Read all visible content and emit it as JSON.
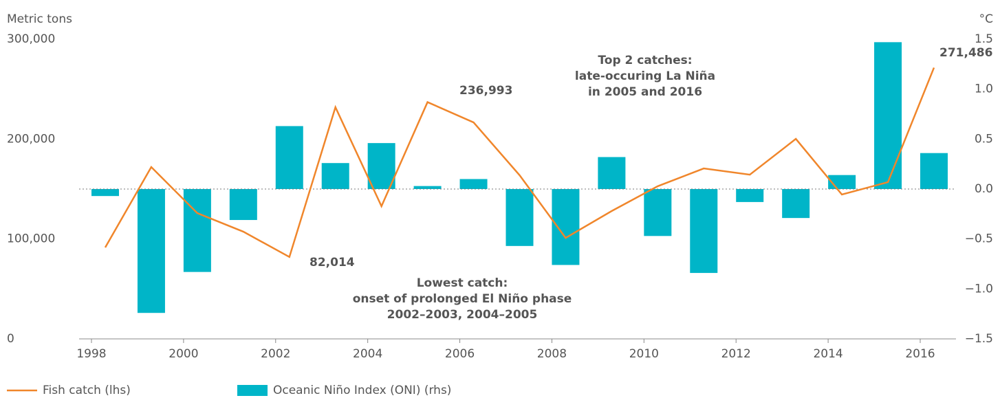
{
  "chart_data": {
    "type": "bar-line",
    "y_label": "Metric tons",
    "y2_label": "°C",
    "x": [
      1998,
      1999,
      2000,
      2001,
      2002,
      2003,
      2004,
      2005,
      2006,
      2007,
      2008,
      2009,
      2010,
      2011,
      2012,
      2013,
      2014,
      2015,
      2016
    ],
    "xlim": [
      1998,
      2016
    ],
    "xticks": [
      1998,
      2000,
      2002,
      2004,
      2006,
      2008,
      2010,
      2012,
      2014,
      2016
    ],
    "ylim": [
      0,
      300000
    ],
    "yticks": [
      {
        "value": 0,
        "label": "0"
      },
      {
        "value": 100000,
        "label": "100,000"
      },
      {
        "value": 200000,
        "label": "200,000"
      },
      {
        "value": 300000,
        "label": "300,000"
      }
    ],
    "y2lim": [
      -1.5,
      1.5
    ],
    "y2ticks": [
      {
        "value": -1.5,
        "label": "−1.5"
      },
      {
        "value": -1.0,
        "label": "−1.0"
      },
      {
        "value": -0.5,
        "label": "−0.5"
      },
      {
        "value": 0,
        "label": "0.0"
      },
      0.5,
      {
        "value": 1.0,
        "label": "1.0"
      },
      1.5
    ],
    "series": [
      {
        "name": "Fish catch (lhs)",
        "type": "line",
        "color": "#f0862b",
        "values": [
          91500,
          172000,
          125900,
          107300,
          82014,
          231900,
          132800,
          236993,
          216700,
          163800,
          101100,
          128000,
          152800,
          170600,
          164400,
          200200,
          144500,
          156900,
          271486
        ]
      },
      {
        "name": "Oceanic Niño Index (ONI) (rhs)",
        "type": "bar",
        "axis": "y2",
        "color": "#00b5c8",
        "values": [
          -0.07,
          -1.24,
          -0.83,
          -0.31,
          0.63,
          0.26,
          0.46,
          0.03,
          0.1,
          -0.57,
          -0.76,
          0.32,
          -0.47,
          -0.84,
          -0.13,
          -0.29,
          0.14,
          1.47,
          0.36
        ]
      }
    ],
    "annotations": [
      {
        "text": "82,014"
      },
      {
        "text": "236,993"
      },
      {
        "text": "271,486"
      },
      {
        "lines": [
          "Top 2 catches:",
          "late-occuring La Niña",
          "in 2005 and 2016"
        ]
      },
      {
        "lines": [
          "Lowest catch:",
          "onset of prolonged El Niño phase",
          "2002–2003, 2004–2005"
        ]
      }
    ]
  }
}
